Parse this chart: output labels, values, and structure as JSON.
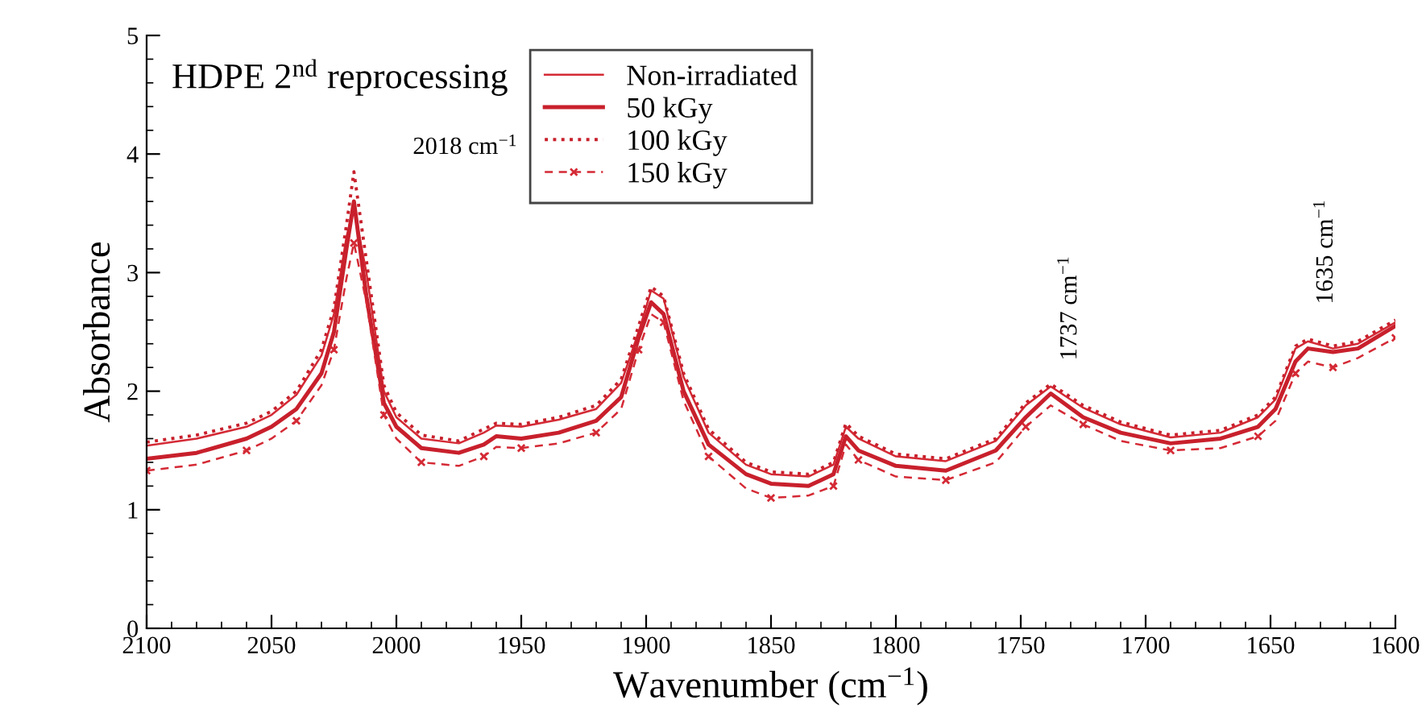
{
  "chart_data": {
    "type": "line",
    "title": "HDPE 2$^{nd}$ reprocessing",
    "xlabel": "Wavenumber (cm$^{−1}$)",
    "ylabel": "Absorbance",
    "x": [
      2100,
      2080,
      2060,
      2050,
      2040,
      2030,
      2025,
      2020,
      2017,
      2012,
      2005,
      2000,
      1990,
      1975,
      1965,
      1960,
      1950,
      1935,
      1920,
      1910,
      1903,
      1898,
      1893,
      1885,
      1875,
      1860,
      1850,
      1835,
      1825,
      1820,
      1815,
      1800,
      1780,
      1760,
      1748,
      1738,
      1725,
      1710,
      1690,
      1670,
      1655,
      1648,
      1640,
      1635,
      1625,
      1615,
      1600
    ],
    "series": [
      {
        "name": "Non-irradiated",
        "color": "#d42a35",
        "line_style": "solid",
        "marker": "none",
        "values": [
          1.54,
          1.6,
          1.7,
          1.8,
          1.97,
          2.3,
          2.65,
          3.3,
          3.55,
          3.0,
          2.0,
          1.78,
          1.6,
          1.56,
          1.65,
          1.71,
          1.7,
          1.76,
          1.85,
          2.07,
          2.5,
          2.85,
          2.78,
          2.12,
          1.65,
          1.38,
          1.3,
          1.28,
          1.38,
          1.7,
          1.6,
          1.45,
          1.41,
          1.58,
          1.88,
          2.04,
          1.86,
          1.72,
          1.61,
          1.65,
          1.78,
          1.93,
          2.36,
          2.42,
          2.36,
          2.4,
          2.58
        ]
      },
      {
        "name": "50 kGy",
        "color": "#c8202c",
        "line_style": "solid",
        "marker": "none",
        "values": [
          1.43,
          1.48,
          1.6,
          1.7,
          1.85,
          2.15,
          2.5,
          3.2,
          3.6,
          2.8,
          1.9,
          1.7,
          1.52,
          1.48,
          1.55,
          1.62,
          1.6,
          1.65,
          1.75,
          1.95,
          2.45,
          2.75,
          2.65,
          2.0,
          1.55,
          1.3,
          1.22,
          1.2,
          1.3,
          1.62,
          1.5,
          1.37,
          1.33,
          1.5,
          1.78,
          1.98,
          1.78,
          1.65,
          1.56,
          1.6,
          1.7,
          1.85,
          2.25,
          2.36,
          2.33,
          2.36,
          2.55
        ]
      },
      {
        "name": "100 kGy",
        "color": "#c8202c",
        "line_style": "dotted",
        "marker": "none",
        "values": [
          1.57,
          1.63,
          1.73,
          1.83,
          2.0,
          2.35,
          2.7,
          3.4,
          3.85,
          3.1,
          2.05,
          1.82,
          1.63,
          1.58,
          1.68,
          1.73,
          1.72,
          1.78,
          1.88,
          2.1,
          2.55,
          2.88,
          2.8,
          2.15,
          1.68,
          1.4,
          1.32,
          1.3,
          1.4,
          1.73,
          1.62,
          1.47,
          1.43,
          1.6,
          1.9,
          2.06,
          1.88,
          1.74,
          1.63,
          1.67,
          1.8,
          1.95,
          2.38,
          2.44,
          2.38,
          2.42,
          2.6
        ]
      },
      {
        "name": "150 kGy",
        "color": "#d42a35",
        "line_style": "dashed",
        "marker": "cross",
        "values": [
          1.33,
          1.38,
          1.5,
          1.6,
          1.75,
          2.05,
          2.35,
          2.95,
          3.25,
          2.75,
          1.8,
          1.6,
          1.4,
          1.37,
          1.45,
          1.53,
          1.52,
          1.56,
          1.65,
          1.85,
          2.35,
          2.65,
          2.58,
          1.92,
          1.45,
          1.18,
          1.1,
          1.12,
          1.2,
          1.55,
          1.42,
          1.28,
          1.25,
          1.4,
          1.7,
          1.88,
          1.72,
          1.58,
          1.5,
          1.52,
          1.62,
          1.75,
          2.15,
          2.25,
          2.2,
          2.28,
          2.45
        ]
      }
    ],
    "annotations": [
      "2018 cm$^{−1}$",
      "1737 cm$^{−1}$",
      "1635 cm$^{−1}$"
    ],
    "xlim": [
      2100,
      1600
    ],
    "xticks": [
      2100,
      2050,
      2000,
      1950,
      1900,
      1850,
      1800,
      1750,
      1700,
      1650,
      1600
    ],
    "ylim": [
      0,
      5
    ],
    "yticks": [
      0,
      1,
      2,
      3,
      4,
      5
    ],
    "grid": false,
    "legend": "top"
  }
}
